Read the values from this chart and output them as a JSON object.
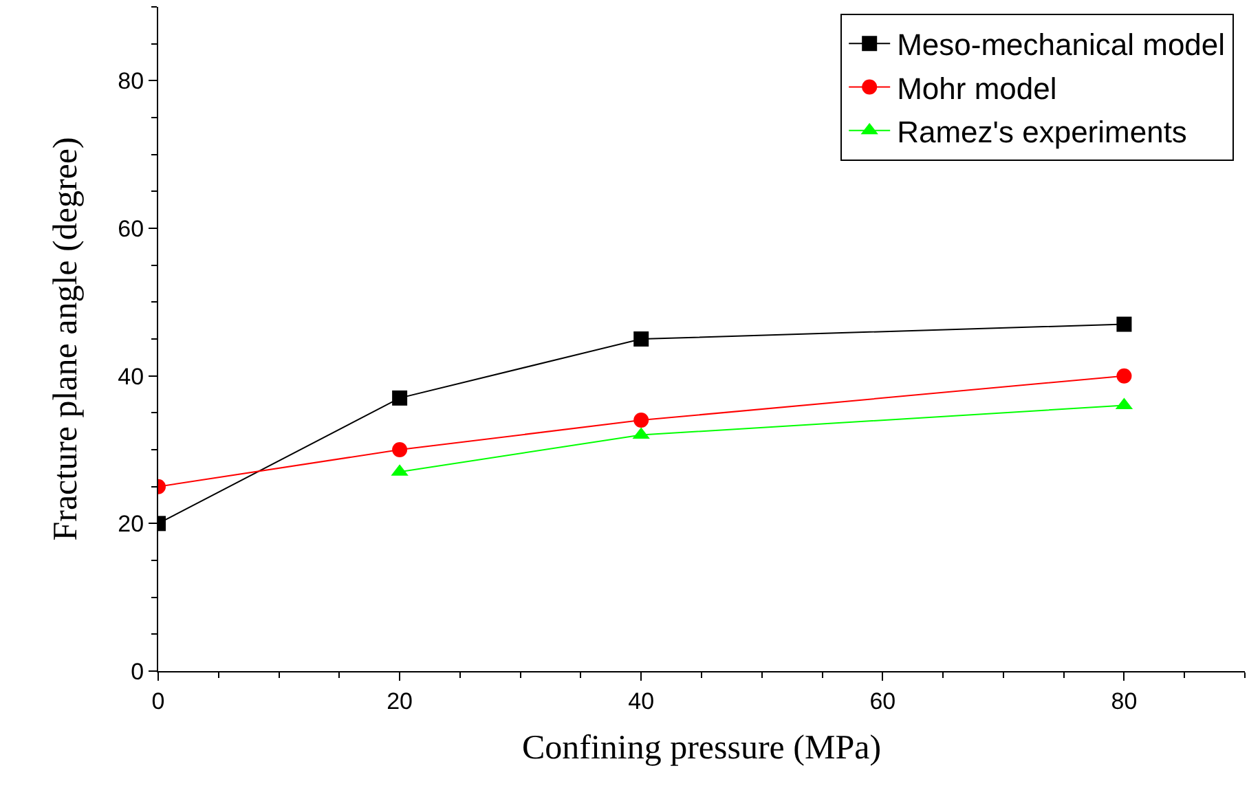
{
  "chart_data": {
    "type": "line",
    "xlabel": "Confining pressure (MPa)",
    "ylabel": "Fracture plane angle (degree)",
    "xlim": [
      0,
      90
    ],
    "ylim": [
      0,
      90
    ],
    "xticks": [
      0,
      20,
      40,
      60,
      80
    ],
    "yticks": [
      0,
      20,
      40,
      60,
      80
    ],
    "legend": "top right",
    "series": [
      {
        "name": "Meso-mechanical model",
        "color": "#000000",
        "marker": "square",
        "x": [
          0,
          20,
          40,
          80
        ],
        "values": [
          20,
          37,
          45,
          47
        ]
      },
      {
        "name": "Mohr model",
        "color": "#ff0000",
        "marker": "circle",
        "x": [
          0,
          20,
          40,
          80
        ],
        "values": [
          25,
          30,
          34,
          40
        ]
      },
      {
        "name": "Ramez's experiments",
        "color": "#00ff00",
        "marker": "triangle",
        "x": [
          20,
          40,
          80
        ],
        "values": [
          27,
          32,
          36
        ]
      }
    ]
  }
}
